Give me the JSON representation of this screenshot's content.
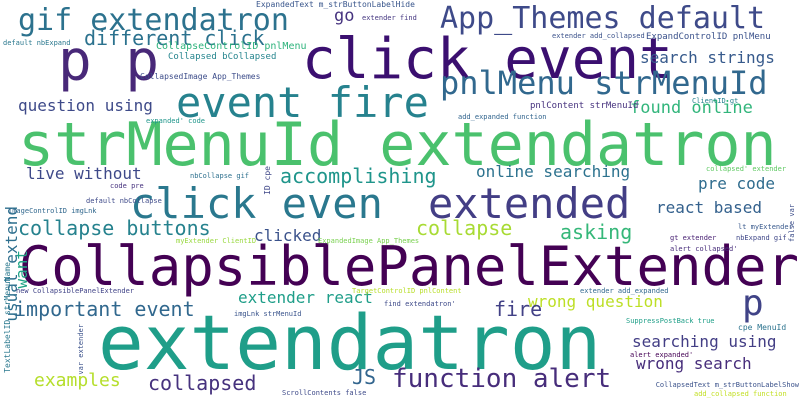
{
  "words": [
    {
      "text": "extendatron",
      "color": "#1f9e89"
    },
    {
      "text": "strMenuId extendatron",
      "color": "#4ac16d"
    },
    {
      "text": "CollapsiblePanelExtender",
      "color": "#440154"
    },
    {
      "text": "click event",
      "color": "#3b0f70"
    },
    {
      "text": "p p",
      "color": "#482878"
    },
    {
      "text": "event fire",
      "color": "#26828e"
    },
    {
      "text": "pnlMenu strMenuId",
      "color": "#31688e"
    },
    {
      "text": "App_Themes default",
      "color": "#3e4a89"
    },
    {
      "text": "gif extendatron",
      "color": "#2c728e"
    },
    {
      "text": "click even",
      "color": "#2a788e"
    },
    {
      "text": "extended",
      "color": "#433e85"
    },
    {
      "text": "function alert",
      "color": "#472d7b"
    },
    {
      "text": "p",
      "color": "#404387"
    },
    {
      "text": "different click",
      "color": "#2c728e"
    },
    {
      "text": "search strings",
      "color": "#375a8c"
    },
    {
      "text": "accomplishing",
      "color": "#1f958b"
    },
    {
      "text": "collapse buttons",
      "color": "#26828e"
    },
    {
      "text": "important event",
      "color": "#31688e"
    },
    {
      "text": "collapse",
      "color": "#a8db34"
    },
    {
      "text": "collapsed",
      "color": "#46327e"
    },
    {
      "text": "examples",
      "color": "#b5de2b"
    },
    {
      "text": "question using",
      "color": "#3e4a89"
    },
    {
      "text": "live without",
      "color": "#3e4989"
    },
    {
      "text": "online searching",
      "color": "#2c728e"
    },
    {
      "text": "found online",
      "color": "#31b57b"
    },
    {
      "text": "pre code",
      "color": "#2f6c8e"
    },
    {
      "text": "react based",
      "color": "#34618d"
    },
    {
      "text": "asking",
      "color": "#35b779"
    },
    {
      "text": "clicked",
      "color": "#3b528b"
    },
    {
      "text": "extender react",
      "color": "#1f9e89"
    },
    {
      "text": "wrong question",
      "color": "#bddf26"
    },
    {
      "text": "searching using",
      "color": "#433e85"
    },
    {
      "text": "wrong search",
      "color": "#472d7b"
    },
    {
      "text": "fire",
      "color": "#424186"
    },
    {
      "text": "go",
      "color": "#46337f"
    },
    {
      "text": "JS",
      "color": "#32658e"
    },
    {
      "text": "want",
      "color": "#20a486"
    },
    {
      "text": "usual extend",
      "color": "#2e6f8e"
    },
    {
      "text": "CollapseControlID pnlMenu",
      "color": "#2eb37c"
    },
    {
      "text": "Collapsed bCollapsed",
      "color": "#25858e"
    },
    {
      "text": "CollapsedImage App_Themes",
      "color": "#3d4d8a"
    },
    {
      "text": "ExpandControlID pnlMenu",
      "color": "#3b528b"
    },
    {
      "text": "pnlContent strMenuId",
      "color": "#46327e"
    },
    {
      "text": "ExpandedText m_strButtonLabelHide",
      "color": "#39568c"
    },
    {
      "text": "extender find",
      "color": "#453781"
    },
    {
      "text": "extender add_collapsed",
      "color": "#3b528b"
    },
    {
      "text": "default nbExpand",
      "color": "#2a788e"
    },
    {
      "text": "ClientID gt",
      "color": "#26828e"
    },
    {
      "text": "expanded' code",
      "color": "#1f968b"
    },
    {
      "text": "add_expanded function",
      "color": "#32658e"
    },
    {
      "text": "nbCollapse gif",
      "color": "#2d708e"
    },
    {
      "text": "code pre",
      "color": "#46327e"
    },
    {
      "text": "ID cpe",
      "color": "#3f4788"
    },
    {
      "text": "ImageControlID imgLnk",
      "color": "#31688e"
    },
    {
      "text": "default nbCollapse",
      "color": "#3e4a89"
    },
    {
      "text": "myExtender ClientID",
      "color": "#98d83e"
    },
    {
      "text": "ExpandedImage App_Themes",
      "color": "#7ad151"
    },
    {
      "text": "collapsed' extender",
      "color": "#5ec962"
    },
    {
      "text": "lt myExtender",
      "color": "#38598c"
    },
    {
      "text": "gt extender",
      "color": "#482173"
    },
    {
      "text": "nbExpand gif",
      "color": "#3f4788"
    },
    {
      "text": "alert collapsed'",
      "color": "#472c7a"
    },
    {
      "text": "false var",
      "color": "#3d4e8a"
    },
    {
      "text": "TextLabelID strMenuName",
      "color": "#2a788e"
    },
    {
      "text": "new CollapsiblePanelExtender",
      "color": "#404387"
    },
    {
      "text": "TargetControlID pnlContent",
      "color": "#b8de29"
    },
    {
      "text": "extender add_expanded",
      "color": "#31688e"
    },
    {
      "text": "find extendatron'",
      "color": "#3e4a89"
    },
    {
      "text": "SuppressPostBack true",
      "color": "#1f9f88"
    },
    {
      "text": "imgLnk strMenuId",
      "color": "#3a548c"
    },
    {
      "text": "cpe MenuId",
      "color": "#2c738e"
    },
    {
      "text": "var extender",
      "color": "#3b528b"
    },
    {
      "text": "alert expanded'",
      "color": "#440154"
    },
    {
      "text": "ScrollContents false",
      "color": "#3e4a89"
    },
    {
      "text": "CollapsedText m_strButtonLabelShow",
      "color": "#3b528b"
    },
    {
      "text": "add_collapsed function",
      "color": "#c2df23"
    }
  ]
}
